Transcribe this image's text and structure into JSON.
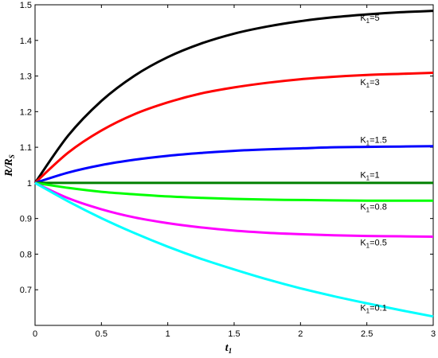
{
  "chart_data": {
    "type": "line",
    "title": "",
    "xlabel_main": "t",
    "xlabel_sub": "1",
    "ylabel_main": "R/R",
    "ylabel_sub": "S",
    "xlim": [
      0,
      3
    ],
    "ylim": [
      0.6,
      1.5
    ],
    "xticks": [
      0,
      0.5,
      1,
      1.5,
      2,
      2.5,
      3
    ],
    "xtick_labels": [
      "0",
      "0.5",
      "1",
      "1.5",
      "2",
      "2.5",
      "3"
    ],
    "yticks": [
      0.7,
      0.8,
      0.9,
      1.0,
      1.1,
      1.2,
      1.3,
      1.4,
      1.5
    ],
    "ytick_labels": [
      "0.7",
      "0.8",
      "0.9",
      "1",
      "1.1",
      "1.2",
      "1.3",
      "1.4",
      "1.5"
    ],
    "grid": false,
    "x": [
      0,
      0.25,
      0.5,
      0.75,
      1,
      1.25,
      1.5,
      1.75,
      2,
      2.25,
      2.5,
      2.75,
      3
    ],
    "series": [
      {
        "name": "K1=5",
        "label_main": "K",
        "label_sub": "1",
        "label_val": "=5",
        "label_at": [
          2.45,
          1.455
        ],
        "color": "#000000",
        "values": [
          1.0,
          1.133,
          1.23,
          1.301,
          1.353,
          1.391,
          1.419,
          1.439,
          1.454,
          1.465,
          1.473,
          1.479,
          1.483
        ]
      },
      {
        "name": "K1=3",
        "label_main": "K",
        "label_sub": "1",
        "label_val": "=3",
        "label_at": [
          2.45,
          1.275
        ],
        "color": "#ff0000",
        "values": [
          1.0,
          1.085,
          1.147,
          1.193,
          1.226,
          1.251,
          1.268,
          1.281,
          1.291,
          1.298,
          1.303,
          1.306,
          1.309
        ]
      },
      {
        "name": "K1=1.5",
        "label_main": "K",
        "label_sub": "1",
        "label_val": "=1.5",
        "label_at": [
          2.45,
          1.112
        ],
        "color": "#0000ff",
        "values": [
          1.0,
          1.029,
          1.05,
          1.065,
          1.076,
          1.084,
          1.09,
          1.094,
          1.097,
          1.1,
          1.101,
          1.102,
          1.103
        ]
      },
      {
        "name": "K1=1",
        "label_main": "K",
        "label_sub": "1",
        "label_val": "=1",
        "label_at": [
          2.45,
          1.014
        ],
        "color": "#008000",
        "values": [
          1.0,
          1.0,
          1.0,
          1.0,
          1.0,
          1.0,
          1.0,
          1.0,
          1.0,
          1.0,
          1.0,
          1.0,
          1.0
        ]
      },
      {
        "name": "K1=0.8",
        "label_main": "K",
        "label_sub": "1",
        "label_val": "=0.8",
        "label_at": [
          2.45,
          0.925
        ],
        "color": "#00ff00",
        "values": [
          1.0,
          0.986,
          0.975,
          0.968,
          0.962,
          0.958,
          0.955,
          0.953,
          0.952,
          0.951,
          0.95,
          0.95,
          0.95
        ]
      },
      {
        "name": "K1=0.5",
        "label_main": "K",
        "label_sub": "1",
        "label_val": "=0.5",
        "label_at": [
          2.45,
          0.825
        ],
        "color": "#ff00ff",
        "values": [
          1.0,
          0.957,
          0.926,
          0.903,
          0.887,
          0.875,
          0.866,
          0.86,
          0.856,
          0.853,
          0.851,
          0.85,
          0.849
        ]
      },
      {
        "name": "K1=0.1",
        "label_main": "K",
        "label_sub": "1",
        "label_val": "=0.1",
        "label_at": [
          2.45,
          0.641
        ],
        "color": "#00ffff",
        "values": [
          1.0,
          0.948,
          0.901,
          0.859,
          0.821,
          0.787,
          0.757,
          0.729,
          0.704,
          0.682,
          0.662,
          0.643,
          0.625
        ]
      }
    ]
  }
}
